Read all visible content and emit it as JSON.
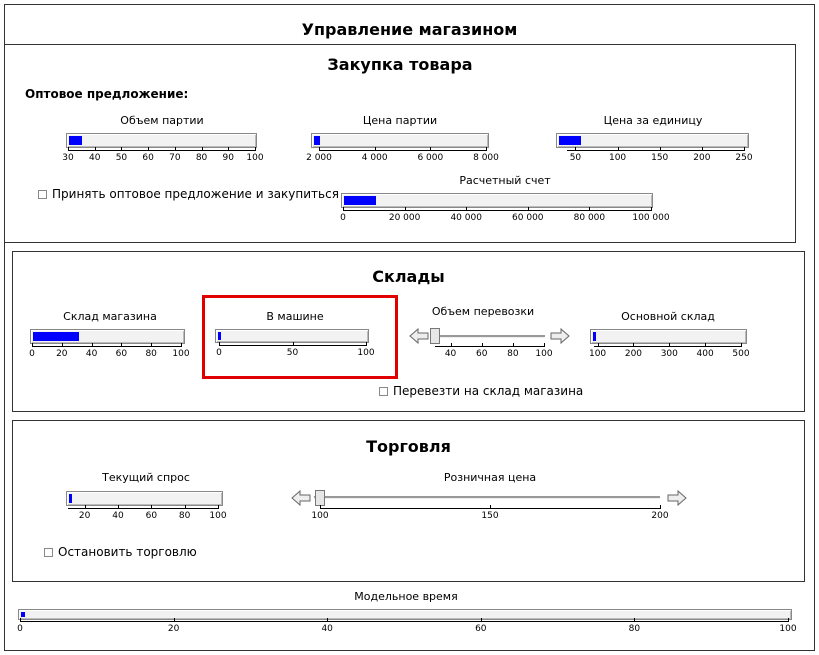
{
  "main_title": "Управление  магазином",
  "purchase": {
    "title": "Закупка  товара",
    "offer_label": "Оптовое  предложение:",
    "batch_volume": {
      "label": "Объем  партии",
      "ticks": [
        "30",
        "40",
        "50",
        "60",
        "70",
        "80",
        "90",
        "100"
      ],
      "value": 35,
      "min": 30,
      "max": 100
    },
    "batch_price": {
      "label": "Цена  партии",
      "ticks": [
        "2 000",
        "4 000",
        "6 000",
        "8 000"
      ],
      "value": 2200,
      "min": 2000,
      "max": 8000
    },
    "unit_price": {
      "label": "Цена  за  единицу",
      "ticks": [
        "50",
        "100",
        "150",
        "200",
        "250"
      ],
      "value": 65,
      "min": 40,
      "max": 250
    },
    "accept_checkbox": "Принять  оптовое  предложение  и  закупиться",
    "account": {
      "label": "Расчетный  счет",
      "ticks": [
        "0",
        "20 000",
        "40 000",
        "60 000",
        "80 000",
        "100 000"
      ],
      "value": 10500,
      "min": 0,
      "max": 100000
    }
  },
  "warehouses": {
    "title": "Склады",
    "store_stock": {
      "label": "Склад  магазина",
      "ticks": [
        "0",
        "20",
        "40",
        "60",
        "80",
        "100"
      ],
      "value": 31,
      "min": 0,
      "max": 100
    },
    "in_truck": {
      "label": "В  машине",
      "ticks": [
        "0",
        "50",
        "100"
      ],
      "value": 2,
      "min": 0,
      "max": 100
    },
    "transfer_volume": {
      "label": "Объем  перевозки",
      "ticks": [
        "40",
        "60",
        "80",
        "100"
      ],
      "value": 30,
      "min": 30,
      "max": 100
    },
    "main_warehouse": {
      "label": "Основной  склад",
      "ticks": [
        "100",
        "200",
        "300",
        "400",
        "500"
      ],
      "value": 95,
      "min": 90,
      "max": 500
    },
    "transfer_checkbox": "Перевезти  на  склад  магазина"
  },
  "trade": {
    "title": "Торговля",
    "demand": {
      "label": "Текущий  спрос",
      "ticks": [
        "20",
        "40",
        "60",
        "80",
        "100"
      ],
      "value": 11,
      "min": 10,
      "max": 100
    },
    "retail_price": {
      "label": "Розничная  цена",
      "ticks": [
        "100",
        "150",
        "200"
      ],
      "value": 100,
      "min": 100,
      "max": 200
    },
    "stop_checkbox": "Остановить  торговлю"
  },
  "model_time": {
    "label": "Модельное  время",
    "ticks": [
      "0",
      "20",
      "40",
      "60",
      "80",
      "100"
    ],
    "value": 0.5,
    "min": 0,
    "max": 100
  },
  "colors": {
    "fill": "#0000ff",
    "highlight": "#e00000"
  }
}
